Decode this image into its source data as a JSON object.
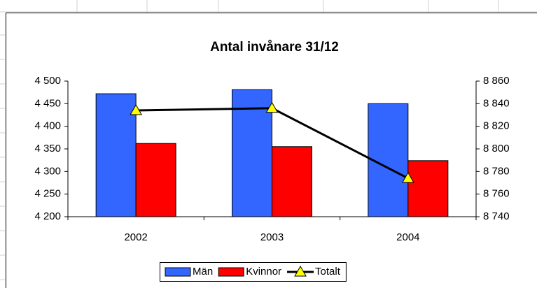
{
  "chart_data": {
    "type": "bar",
    "title": "Antal invånare 31/12",
    "categories": [
      "2002",
      "2003",
      "2004"
    ],
    "series": [
      {
        "name": "Män",
        "color": "#3366ff",
        "values": [
          4472,
          4481,
          4450
        ]
      },
      {
        "name": "Kvinnor",
        "color": "#ff0000",
        "values": [
          4362,
          4355,
          4324
        ]
      },
      {
        "name": "Totalt",
        "type": "line",
        "axis": "y2",
        "color": "#000000",
        "marker_color": "#ffff00",
        "values": [
          8834,
          8836,
          8774
        ]
      }
    ],
    "ylim": [
      4200,
      4500
    ],
    "yticks": [
      {
        "value": 4200,
        "label": "4 200"
      },
      {
        "value": 4250,
        "label": "4 250"
      },
      {
        "value": 4300,
        "label": "4 300"
      },
      {
        "value": 4350,
        "label": "4 350"
      },
      {
        "value": 4400,
        "label": "4 400"
      },
      {
        "value": 4450,
        "label": "4 450"
      },
      {
        "value": 4500,
        "label": "4 500"
      }
    ],
    "y2lim": [
      8740,
      8860
    ],
    "y2ticks": [
      {
        "value": 8740,
        "label": "8 740"
      },
      {
        "value": 8760,
        "label": "8 760"
      },
      {
        "value": 8780,
        "label": "8 780"
      },
      {
        "value": 8800,
        "label": "8 800"
      },
      {
        "value": 8820,
        "label": "8 820"
      },
      {
        "value": 8840,
        "label": "8 840"
      },
      {
        "value": 8860,
        "label": "8 860"
      }
    ],
    "legend": "bottom"
  }
}
